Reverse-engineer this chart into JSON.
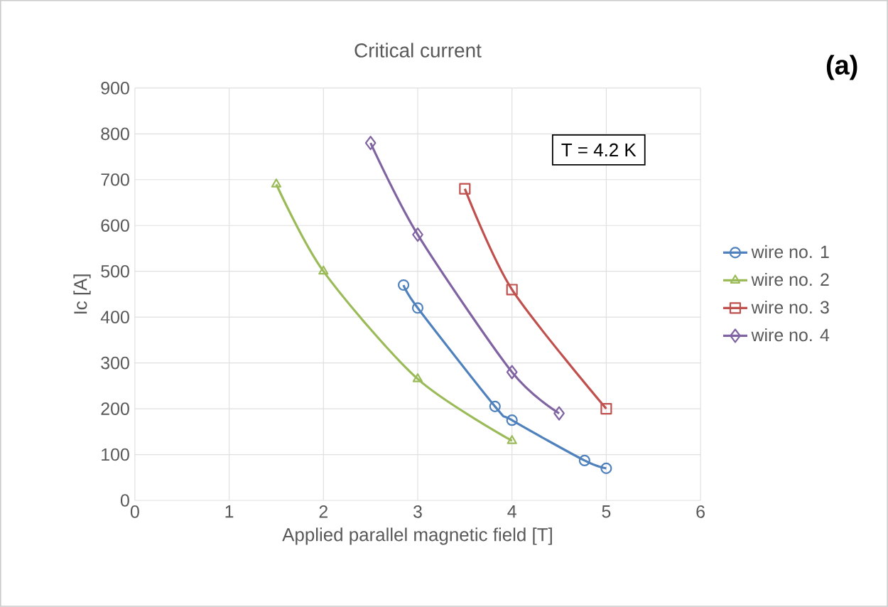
{
  "chart_data": {
    "type": "line",
    "title": "Critical current",
    "xlabel": "Applied parallel magnetic field [T]",
    "ylabel": "Ic [A]",
    "xlim": [
      0,
      6
    ],
    "xticks": [
      0,
      1,
      2,
      3,
      4,
      5,
      6
    ],
    "ylim": [
      0,
      900
    ],
    "yticks": [
      0,
      100,
      200,
      300,
      400,
      500,
      600,
      700,
      800,
      900
    ],
    "grid": true,
    "legend": "right",
    "annotations": [
      "T = 4.2 K",
      "(a)"
    ],
    "series": [
      {
        "name": "wire no. 1",
        "color": "#4f81bd",
        "marker": "circle",
        "x": [
          2.85,
          3,
          3.82,
          4,
          4.77,
          5
        ],
        "values": [
          470,
          420,
          205,
          175,
          87,
          70
        ]
      },
      {
        "name": "wire no. 2",
        "color": "#9bbb59",
        "marker": "triangle",
        "x": [
          1.5,
          2,
          3,
          4
        ],
        "values": [
          690,
          500,
          265,
          130
        ]
      },
      {
        "name": "wire no. 3",
        "color": "#c0504d",
        "marker": "square",
        "x": [
          3.5,
          4,
          5
        ],
        "values": [
          680,
          460,
          200
        ]
      },
      {
        "name": "wire no. 4",
        "color": "#8064a2",
        "marker": "diamond",
        "x": [
          2.5,
          3,
          4,
          4.5
        ],
        "values": [
          780,
          580,
          280,
          190
        ]
      }
    ]
  }
}
